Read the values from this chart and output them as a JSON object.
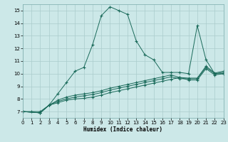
{
  "xlabel": "Humidex (Indice chaleur)",
  "bg_color": "#cce8e8",
  "grid_color": "#aacccc",
  "line_color": "#1a6a5a",
  "xlim": [
    0,
    23
  ],
  "ylim": [
    6.5,
    15.5
  ],
  "xticks": [
    0,
    1,
    2,
    3,
    4,
    5,
    6,
    7,
    8,
    9,
    10,
    11,
    12,
    13,
    14,
    15,
    16,
    17,
    18,
    19,
    20,
    21,
    22,
    23
  ],
  "yticks": [
    7,
    8,
    9,
    10,
    11,
    12,
    13,
    14,
    15
  ],
  "line1_x": [
    0,
    1,
    2,
    3,
    4,
    5,
    6,
    7,
    8,
    9,
    10,
    11,
    12,
    13,
    14,
    15,
    16,
    17,
    18,
    19,
    20,
    21,
    22,
    23
  ],
  "line1_y": [
    7.0,
    7.0,
    7.0,
    7.5,
    8.4,
    9.3,
    10.2,
    10.5,
    12.3,
    14.6,
    15.3,
    15.0,
    14.7,
    12.6,
    11.5,
    11.1,
    10.1,
    10.1,
    10.1,
    10.0,
    13.8,
    11.1,
    10.0,
    10.0
  ],
  "line2_x": [
    0,
    2,
    3,
    4,
    5,
    6,
    7,
    8,
    9,
    10,
    11,
    12,
    13,
    14,
    15,
    16,
    17,
    18,
    19,
    20,
    21,
    22,
    23
  ],
  "line2_y": [
    7.0,
    6.9,
    7.5,
    7.7,
    7.9,
    8.0,
    8.05,
    8.15,
    8.3,
    8.5,
    8.65,
    8.8,
    8.95,
    9.1,
    9.25,
    9.4,
    9.55,
    9.7,
    9.5,
    9.5,
    10.4,
    9.9,
    10.0
  ],
  "line3_x": [
    0,
    2,
    3,
    4,
    5,
    6,
    7,
    8,
    9,
    10,
    11,
    12,
    13,
    14,
    15,
    16,
    17,
    18,
    19,
    20,
    21,
    22,
    23
  ],
  "line3_y": [
    7.0,
    6.9,
    7.5,
    7.8,
    8.0,
    8.15,
    8.25,
    8.35,
    8.5,
    8.7,
    8.85,
    9.0,
    9.15,
    9.3,
    9.45,
    9.6,
    9.75,
    9.6,
    9.6,
    9.6,
    10.5,
    10.0,
    10.1
  ],
  "line4_x": [
    0,
    2,
    3,
    4,
    5,
    6,
    7,
    8,
    9,
    10,
    11,
    12,
    13,
    14,
    15,
    16,
    17,
    18,
    19,
    20,
    21,
    22,
    23
  ],
  "line4_y": [
    7.0,
    6.9,
    7.5,
    7.9,
    8.15,
    8.3,
    8.4,
    8.5,
    8.65,
    8.85,
    9.0,
    9.15,
    9.3,
    9.45,
    9.6,
    9.75,
    9.9,
    9.7,
    9.65,
    9.65,
    10.6,
    10.05,
    10.2
  ]
}
